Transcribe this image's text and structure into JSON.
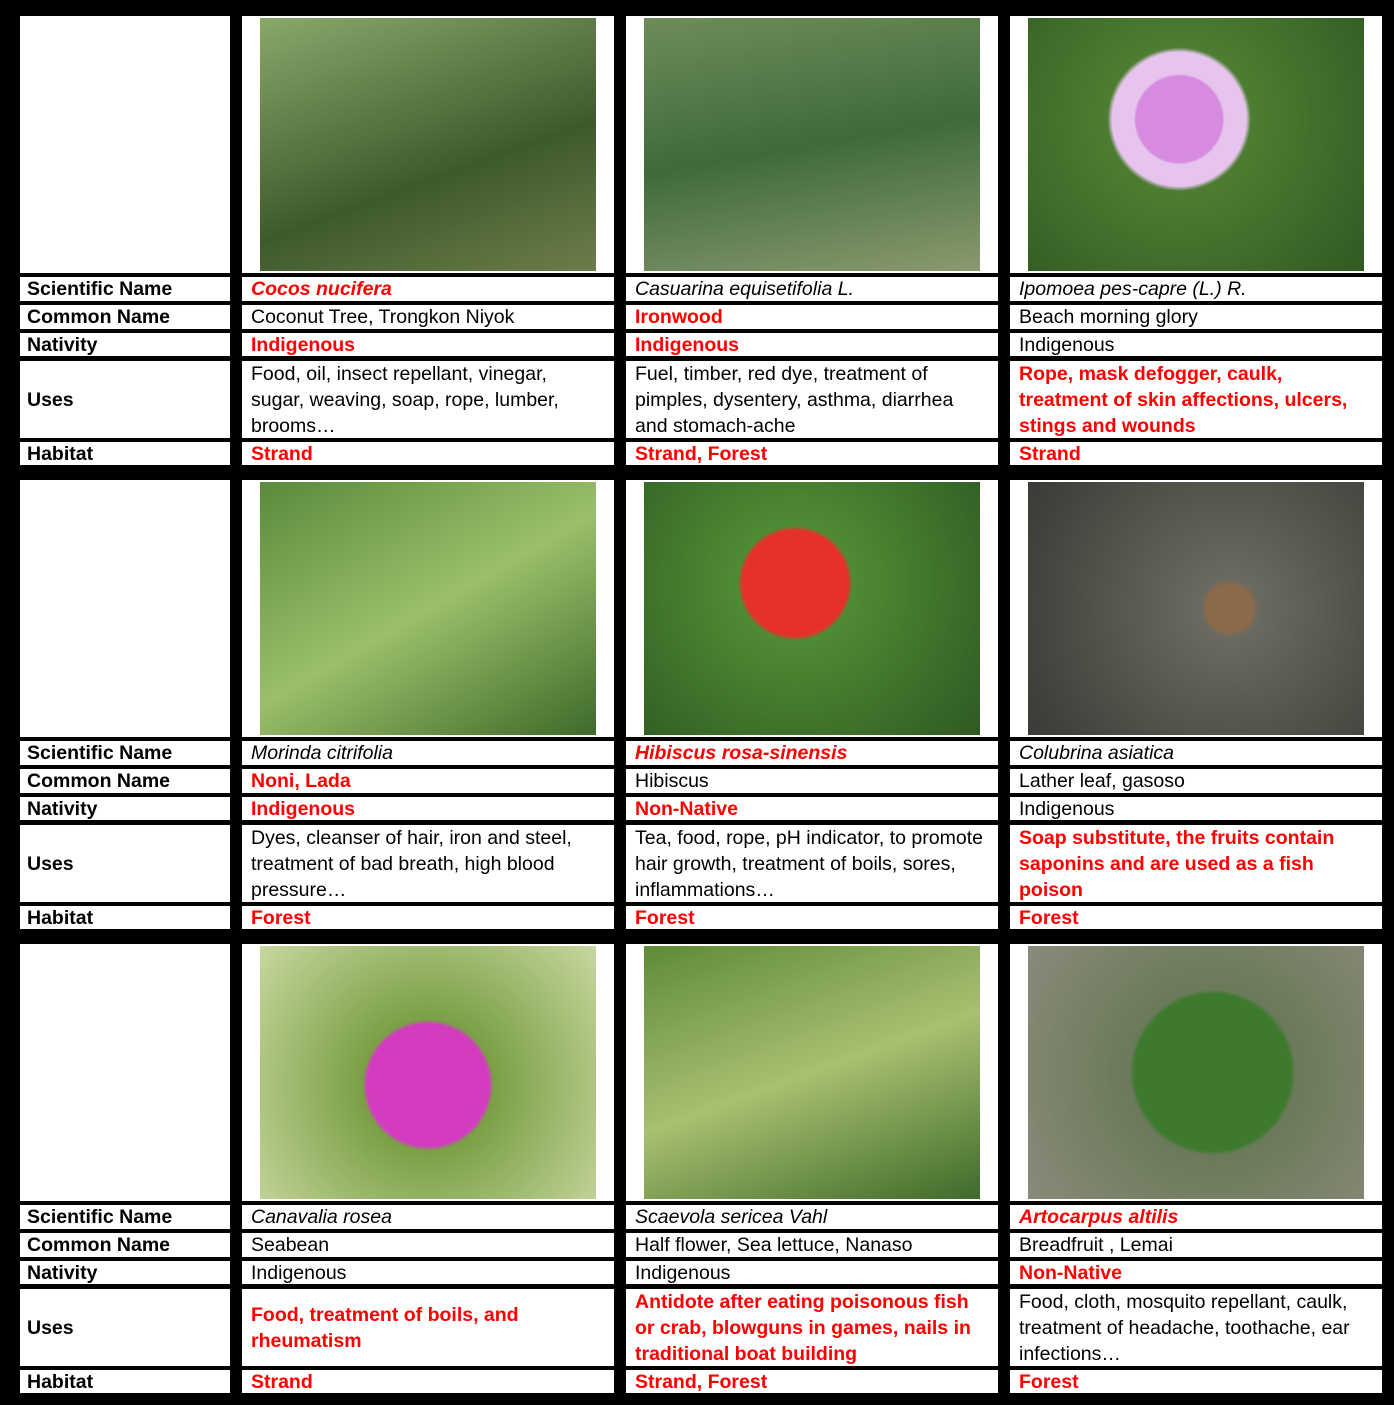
{
  "row_labels": [
    "Scientific Name",
    "Common Name",
    "Nativity",
    "Uses",
    "Habitat"
  ],
  "plants": [
    {
      "fields": [
        "Cocos nucifera",
        "Coconut Tree, Trongkon Niyok",
        "Indigenous",
        "Food, oil, insect repellant, vinegar, sugar, weaving, soap, rope, lumber, brooms…",
        "Strand"
      ],
      "red": [
        true,
        false,
        true,
        false,
        true
      ]
    },
    {
      "fields": [
        "Casuarina equisetifolia L.",
        "Ironwood",
        "Indigenous",
        "Fuel, timber, red dye, treatment of pimples, dysentery, asthma, diarrhea and stomach-ache",
        "Strand, Forest"
      ],
      "red": [
        false,
        true,
        true,
        false,
        true
      ]
    },
    {
      "fields": [
        "Ipomoea pes-capre (L.) R.",
        "Beach morning glory",
        "Indigenous",
        "Rope, mask defogger, caulk, treatment of skin affections, ulcers, stings and wounds",
        "Strand"
      ],
      "red": [
        false,
        false,
        false,
        true,
        true
      ]
    },
    {
      "fields": [
        "Morinda citrifolia",
        "Noni, Lada",
        "Indigenous",
        "Dyes, cleanser of hair, iron and steel, treatment of bad breath, high blood pressure…",
        "Forest"
      ],
      "red": [
        false,
        true,
        true,
        false,
        true
      ]
    },
    {
      "fields": [
        "Hibiscus rosa-sinensis",
        "Hibiscus",
        "Non-Native",
        "Tea, food, rope, pH indicator, to promote hair growth, treatment of boils, sores, inflammations…",
        "Forest"
      ],
      "red": [
        true,
        false,
        true,
        false,
        true
      ]
    },
    {
      "fields": [
        "Colubrina asiatica",
        "Lather leaf, gasoso",
        "Indigenous",
        "Soap substitute, the fruits contain saponins and are used as a fish poison",
        "Forest"
      ],
      "red": [
        false,
        false,
        false,
        true,
        true
      ]
    },
    {
      "fields": [
        "Canavalia rosea",
        "Seabean",
        "Indigenous",
        "Food, treatment of boils, and rheumatism",
        "Strand"
      ],
      "red": [
        false,
        false,
        false,
        true,
        true
      ]
    },
    {
      "fields": [
        "Scaevola sericea Vahl",
        "Half flower, Sea lettuce, Nanaso",
        "Indigenous",
        "Antidote after eating poisonous fish or crab, blowguns in games, nails in traditional boat building",
        "Strand, Forest"
      ],
      "red": [
        false,
        false,
        false,
        true,
        true
      ]
    },
    {
      "fields": [
        "Artocarpus altilis",
        "Breadfruit , Lemai",
        "Non-Native",
        "Food, cloth, mosquito repellant, caulk, treatment of headache, toothache, ear infections…",
        "Forest"
      ],
      "red": [
        true,
        false,
        true,
        false,
        true
      ]
    }
  ]
}
